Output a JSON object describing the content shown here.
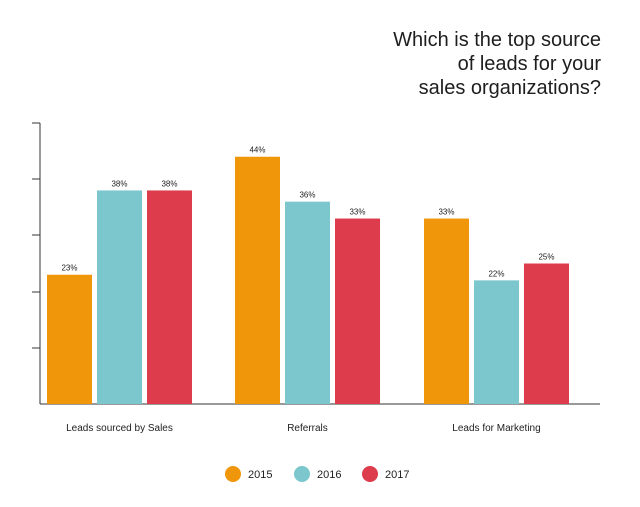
{
  "chart_data": {
    "type": "bar",
    "title_lines": [
      "Which is the top source",
      "of leads for your",
      "sales organizations?"
    ],
    "categories": [
      "Leads sourced by Sales",
      "Referrals",
      "Leads for Marketing"
    ],
    "series": [
      {
        "name": "2015",
        "color": "#F0960A",
        "values": [
          23,
          44,
          33
        ],
        "labels": [
          "23%",
          "44%",
          "33%"
        ]
      },
      {
        "name": "2016",
        "color": "#7CC6CD",
        "values": [
          38,
          36,
          22
        ],
        "labels": [
          "38%",
          "36%",
          "22%"
        ]
      },
      {
        "name": "2017",
        "color": "#DD3C4C",
        "values": [
          38,
          33,
          25
        ],
        "labels": [
          "38%",
          "33%",
          "25%"
        ]
      }
    ],
    "ylim": [
      0,
      50
    ],
    "legend_position": "bottom"
  }
}
